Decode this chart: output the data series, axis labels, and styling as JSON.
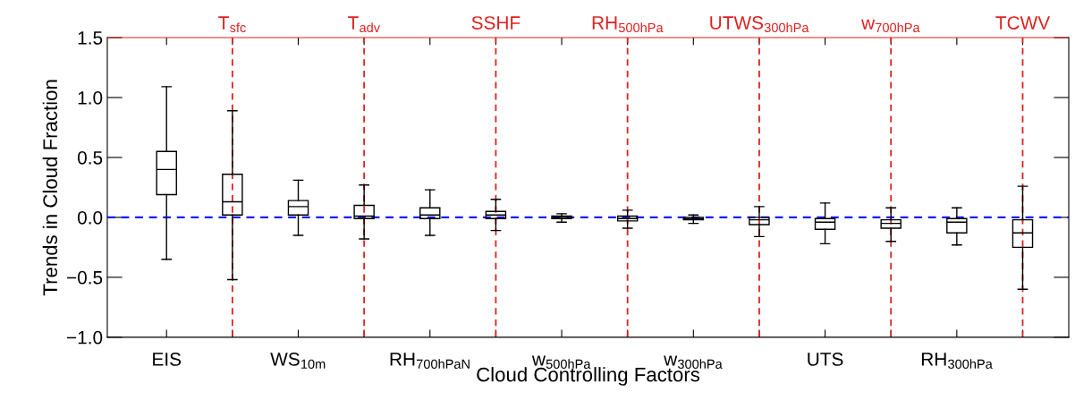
{
  "chart_data": {
    "type": "box",
    "xlabel": "Cloud Controlling Factors",
    "ylabel": "Trends in Cloud Fraction",
    "categories": [
      "EIS",
      "T$_{sfc}$",
      "WS$_{10m}$",
      "T$_{adv}$",
      "RH$_{700hPaN}$",
      "SSHF",
      "w$_{500hPa}$",
      "RH$_{500hPa}$",
      "w$_{300hPa}$",
      "UTWS$_{300hPa}$",
      "UTS",
      "w$_{700hPa}$",
      "RH$_{300hPa}$",
      "TCWV"
    ],
    "boxes": [
      {
        "low": -0.35,
        "q1": 0.19,
        "median": 0.4,
        "q3": 0.55,
        "high": 1.09
      },
      {
        "low": -0.52,
        "q1": 0.02,
        "median": 0.13,
        "q3": 0.36,
        "high": 0.89
      },
      {
        "low": -0.15,
        "q1": 0.02,
        "median": 0.09,
        "q3": 0.14,
        "high": 0.31
      },
      {
        "low": -0.18,
        "q1": -0.01,
        "median": 0.01,
        "q3": 0.1,
        "high": 0.27
      },
      {
        "low": -0.15,
        "q1": -0.01,
        "median": 0.02,
        "q3": 0.08,
        "high": 0.23
      },
      {
        "low": -0.11,
        "q1": -0.01,
        "median": 0.02,
        "q3": 0.05,
        "high": 0.15
      },
      {
        "low": -0.04,
        "q1": -0.01,
        "median": 0.0,
        "q3": 0.01,
        "high": 0.03
      },
      {
        "low": -0.09,
        "q1": -0.03,
        "median": -0.01,
        "q3": 0.01,
        "high": 0.06
      },
      {
        "low": -0.05,
        "q1": -0.02,
        "median": -0.01,
        "q3": 0.0,
        "high": 0.02
      },
      {
        "low": -0.16,
        "q1": -0.06,
        "median": -0.02,
        "q3": 0.0,
        "high": 0.09
      },
      {
        "low": -0.22,
        "q1": -0.1,
        "median": -0.04,
        "q3": -0.01,
        "high": 0.12
      },
      {
        "low": -0.2,
        "q1": -0.09,
        "median": -0.05,
        "q3": -0.02,
        "high": 0.08
      },
      {
        "low": -0.23,
        "q1": -0.13,
        "median": -0.04,
        "q3": -0.01,
        "high": 0.08
      },
      {
        "low": -0.6,
        "q1": -0.25,
        "median": -0.13,
        "q3": -0.02,
        "high": 0.26
      }
    ],
    "color": "#000000",
    "ylim": [
      -1.0,
      1.5
    ],
    "yticks": [
      {
        "value": -1.0,
        "label": "−1.0"
      },
      {
        "value": -0.5,
        "label": "−0.5"
      },
      {
        "value": 0.0,
        "label": "0.0"
      },
      {
        "value": 0.5,
        "label": "0.5"
      },
      {
        "value": 1.0,
        "label": "1.0"
      },
      {
        "value": 1.5,
        "label": "1.5"
      }
    ],
    "ref_lines": [
      {
        "axis": "y",
        "value": 0,
        "color": "#1a1aff",
        "line_style": "dashed"
      },
      {
        "axis": "x",
        "value": "T$_{sfc}$",
        "color": "#dd2222",
        "line_style": "dashed"
      },
      {
        "axis": "x",
        "value": "T$_{adv}$",
        "color": "#dd2222",
        "line_style": "dashed"
      },
      {
        "axis": "x",
        "value": "SSHF",
        "color": "#dd2222",
        "line_style": "dashed"
      },
      {
        "axis": "x",
        "value": "RH$_{500hPa}$",
        "color": "#dd2222",
        "line_style": "dashed"
      },
      {
        "axis": "x",
        "value": "UTWS$_{300hPa}$",
        "color": "#dd2222",
        "line_style": "dashed"
      },
      {
        "axis": "x",
        "value": "w$_{700hPa}$",
        "color": "#dd2222",
        "line_style": "dashed"
      },
      {
        "axis": "x",
        "value": "TCWV",
        "color": "#dd2222",
        "line_style": "dashed"
      }
    ],
    "grid": false
  }
}
